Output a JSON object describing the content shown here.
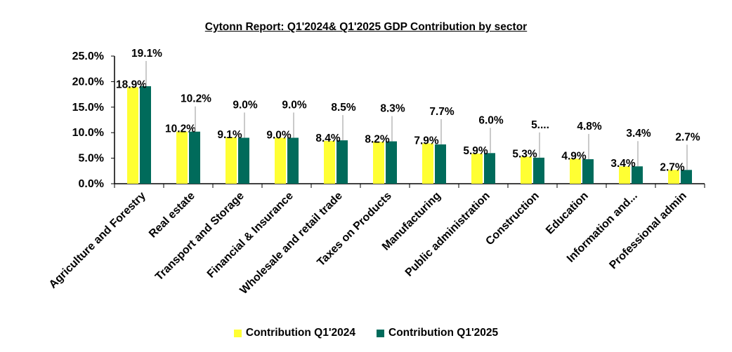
{
  "chart_data": {
    "type": "bar",
    "title": "Cytonn Report: Q1'2024& Q1'2025 GDP Contribution by sector",
    "xlabel": "",
    "ylabel": "",
    "ylim": [
      0,
      25
    ],
    "yticks": [
      "0.0%",
      "5.0%",
      "10.0%",
      "15.0%",
      "20.0%",
      "25.0%"
    ],
    "grid": false,
    "legend_position": "bottom",
    "categories": [
      "Agriculture and Forestry",
      "Real estate",
      "Transport and Storage",
      "Financial & Insurance",
      "Wholesale and retail trade",
      "Taxes on Products",
      "Manufacturing",
      "Public administration",
      "Construction",
      "Education",
      "Information and...",
      "Professional admin"
    ],
    "series": [
      {
        "name": "Contribution Q1'2024",
        "color": "#FFFF33",
        "values": [
          18.9,
          10.2,
          9.1,
          9.0,
          8.4,
          8.2,
          7.9,
          5.9,
          5.3,
          4.9,
          3.4,
          2.7
        ],
        "labels": [
          "18.9%",
          "10.2%",
          "9.1%",
          "9.0%",
          "8.4%",
          "8.2%",
          "7.9%",
          "5.9%",
          "5.3%",
          "4.9%",
          "3.4%",
          "2.7%"
        ]
      },
      {
        "name": "Contribution Q1'2025",
        "color": "#006B5B",
        "values": [
          19.1,
          10.2,
          9.0,
          9.0,
          8.5,
          8.3,
          7.7,
          6.0,
          5.1,
          4.8,
          3.4,
          2.7
        ],
        "labels": [
          "19.1%",
          "10.2%",
          "9.0%",
          "9.0%",
          "8.5%",
          "8.3%",
          "7.7%",
          "6.0%",
          "5....",
          "4.8%",
          "3.4%",
          "2.7%"
        ]
      }
    ]
  },
  "legend": {
    "item1": "Contribution Q1'2024",
    "item2": "Contribution Q1'2025"
  },
  "colors": {
    "axis": "#000000",
    "leader_line": "#A6A6A6"
  }
}
